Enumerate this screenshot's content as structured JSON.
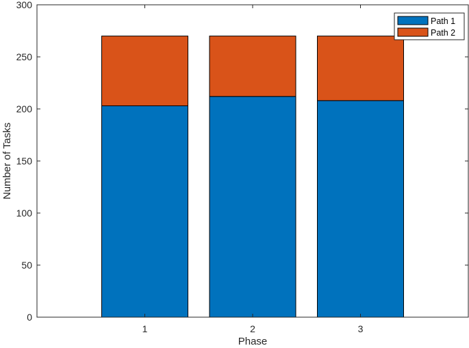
{
  "chart_data": {
    "type": "bar",
    "stacked": true,
    "categories": [
      "1",
      "2",
      "3"
    ],
    "series": [
      {
        "name": "Path 1",
        "values": [
          203,
          212,
          208
        ],
        "color": "#0072BD"
      },
      {
        "name": "Path 2",
        "values": [
          67,
          58,
          62
        ],
        "color": "#D95319"
      }
    ],
    "totals": [
      270,
      270,
      270
    ],
    "xlabel": "Phase",
    "ylabel": "Number of Tasks",
    "xlim": [
      0,
      4
    ],
    "ylim": [
      0,
      300
    ],
    "yticks": [
      "0",
      "50",
      "100",
      "150",
      "200",
      "250",
      "300"
    ],
    "grid": false,
    "legend_position": "top-right",
    "axis_color": "#262626",
    "bar_edge_color": "#000000"
  }
}
